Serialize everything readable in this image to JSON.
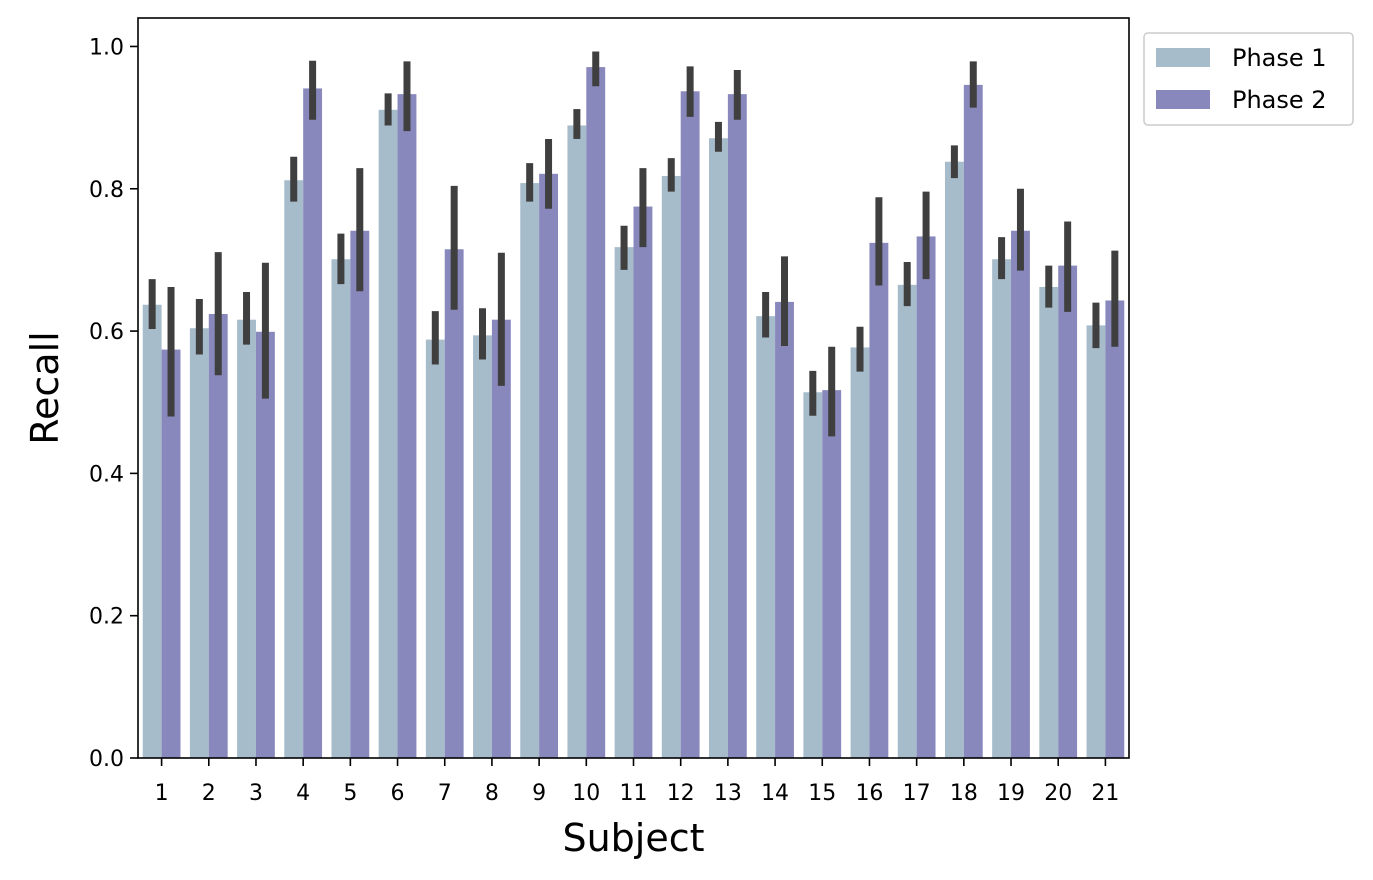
{
  "chart_data": {
    "type": "bar",
    "xlabel": "Subject",
    "ylabel": "Recall",
    "categories": [
      "1",
      "2",
      "3",
      "4",
      "5",
      "6",
      "7",
      "8",
      "9",
      "10",
      "11",
      "12",
      "13",
      "14",
      "15",
      "16",
      "17",
      "18",
      "19",
      "20",
      "21"
    ],
    "ylim": [
      0.0,
      1.04
    ],
    "yticks": [
      0.0,
      0.2,
      0.4,
      0.6,
      0.8,
      1.0
    ],
    "ytick_labels": [
      "0.0",
      "0.2",
      "0.4",
      "0.6",
      "0.8",
      "1.0"
    ],
    "grid": false,
    "legend_position": "outside-top-right",
    "series": [
      {
        "name": "Phase 1",
        "color": "#a7bccb",
        "values": [
          0.637,
          0.604,
          0.616,
          0.812,
          0.701,
          0.911,
          0.588,
          0.594,
          0.808,
          0.889,
          0.718,
          0.818,
          0.871,
          0.621,
          0.514,
          0.577,
          0.665,
          0.838,
          0.701,
          0.662,
          0.608
        ],
        "err_low": [
          0.603,
          0.567,
          0.581,
          0.782,
          0.666,
          0.889,
          0.553,
          0.56,
          0.782,
          0.87,
          0.686,
          0.796,
          0.852,
          0.591,
          0.481,
          0.543,
          0.635,
          0.815,
          0.673,
          0.633,
          0.576
        ],
        "err_high": [
          0.673,
          0.645,
          0.655,
          0.845,
          0.737,
          0.934,
          0.628,
          0.632,
          0.836,
          0.912,
          0.748,
          0.843,
          0.894,
          0.655,
          0.544,
          0.606,
          0.697,
          0.861,
          0.732,
          0.692,
          0.64
        ]
      },
      {
        "name": "Phase 2",
        "color": "#8888bd",
        "values": [
          0.574,
          0.624,
          0.599,
          0.941,
          0.741,
          0.933,
          0.715,
          0.616,
          0.821,
          0.971,
          0.775,
          0.937,
          0.933,
          0.641,
          0.517,
          0.724,
          0.733,
          0.946,
          0.741,
          0.692,
          0.643
        ],
        "err_low": [
          0.48,
          0.538,
          0.505,
          0.897,
          0.656,
          0.881,
          0.63,
          0.523,
          0.772,
          0.944,
          0.718,
          0.901,
          0.897,
          0.579,
          0.452,
          0.664,
          0.673,
          0.914,
          0.685,
          0.627,
          0.578
        ],
        "err_high": [
          0.662,
          0.711,
          0.696,
          0.98,
          0.829,
          0.979,
          0.804,
          0.71,
          0.87,
          0.993,
          0.829,
          0.972,
          0.967,
          0.705,
          0.578,
          0.788,
          0.796,
          0.979,
          0.8,
          0.754,
          0.713
        ]
      }
    ]
  }
}
